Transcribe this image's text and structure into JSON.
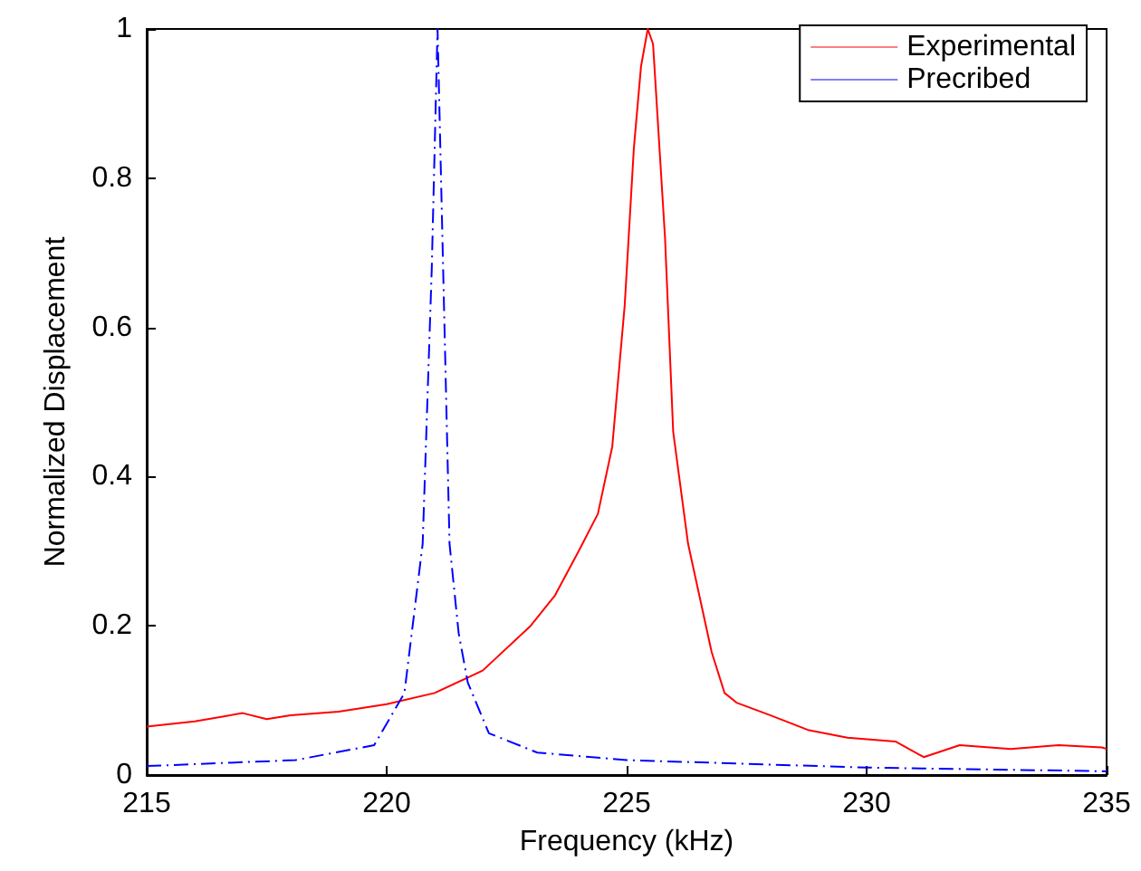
{
  "chart_data": {
    "type": "line",
    "xlabel": "Frequency (kHz)",
    "ylabel": "Normalized Displacement",
    "xlim": [
      215,
      235
    ],
    "xticks": [
      215,
      220,
      225,
      230,
      235
    ],
    "ylim": [
      0,
      1
    ],
    "yticks": [
      0,
      0.2,
      0.4,
      0.6,
      0.8,
      1
    ],
    "grid": false,
    "legend": "top right",
    "marker": "none",
    "series": [
      {
        "name": "Experimental",
        "color": "#ff0000",
        "line_style": "solid",
        "x": [
          215,
          216,
          217,
          217.5,
          218,
          219,
          220,
          221,
          222,
          223,
          223.5,
          224,
          224.4,
          224.7,
          224.96,
          225.15,
          225.3,
          225.44,
          225.55,
          225.8,
          225.97,
          226.28,
          226.77,
          227.04,
          227.29,
          228,
          228.8,
          229.6,
          230.6,
          231.19,
          231.94,
          233,
          234,
          234.9,
          235
        ],
        "values": [
          0.065,
          0.072,
          0.083,
          0.075,
          0.08,
          0.085,
          0.095,
          0.11,
          0.14,
          0.2,
          0.24,
          0.3,
          0.35,
          0.44,
          0.63,
          0.84,
          0.95,
          1.0,
          0.98,
          0.72,
          0.46,
          0.31,
          0.165,
          0.11,
          0.097,
          0.08,
          0.06,
          0.05,
          0.045,
          0.024,
          0.04,
          0.035,
          0.04,
          0.037,
          0.035
        ]
      },
      {
        "name": "Precribed",
        "color": "#0000ff",
        "line_style": "dashdot",
        "x": [
          215,
          218.1,
          219.74,
          220.37,
          220.75,
          220.94,
          221.06,
          221.31,
          221.5,
          221.69,
          222.13,
          223.14,
          225,
          230,
          235
        ],
        "values": [
          0.012,
          0.02,
          0.04,
          0.11,
          0.31,
          0.68,
          1.0,
          0.31,
          0.19,
          0.124,
          0.056,
          0.03,
          0.02,
          0.01,
          0.005
        ]
      }
    ]
  }
}
